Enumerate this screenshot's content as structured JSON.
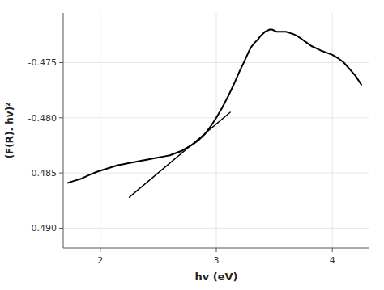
{
  "chart_data": {
    "type": "line",
    "title": "",
    "xlabel": "hv (eV)",
    "ylabel": "(F(R). hv)²",
    "xlim": [
      1.68,
      4.32
    ],
    "ylim": [
      -0.4918,
      -0.4705
    ],
    "xticks": [
      2,
      3,
      4
    ],
    "yticks": [
      {
        "value": -0.49,
        "label": "-0.490"
      },
      -0.485,
      {
        "value": -0.48,
        "label": "-0.480"
      },
      -0.475
    ],
    "series": [
      {
        "color": "#000000",
        "x": [
          1.72,
          1.78,
          1.84,
          1.9,
          1.97,
          2.03,
          2.09,
          2.15,
          2.2,
          2.25,
          2.3,
          2.35,
          2.4,
          2.45,
          2.5,
          2.55,
          2.6,
          2.65,
          2.7,
          2.75,
          2.8,
          2.85,
          2.9,
          2.95,
          3.0,
          3.05,
          3.1,
          3.15,
          3.2,
          3.25,
          3.28,
          3.3,
          3.33,
          3.36,
          3.38,
          3.4,
          3.42,
          3.44,
          3.46,
          3.48,
          3.5,
          3.52,
          3.54,
          3.57,
          3.6,
          3.63,
          3.66,
          3.7,
          3.74,
          3.78,
          3.82,
          3.86,
          3.9,
          3.95,
          4.0,
          4.05,
          4.1,
          4.15,
          4.2,
          4.25
        ],
        "values": [
          -0.4859,
          -0.4857,
          -0.4855,
          -0.4852,
          -0.4849,
          -0.4847,
          -0.4845,
          -0.4843,
          -0.4842,
          -0.4841,
          -0.484,
          -0.4839,
          -0.4838,
          -0.4837,
          -0.4836,
          -0.4835,
          -0.4834,
          -0.4832,
          -0.483,
          -0.4827,
          -0.4824,
          -0.482,
          -0.4815,
          -0.4808,
          -0.48,
          -0.4791,
          -0.4781,
          -0.477,
          -0.4758,
          -0.4747,
          -0.474,
          -0.4736,
          -0.4732,
          -0.4729,
          -0.4726,
          -0.4724,
          -0.4722,
          -0.4721,
          -0.472,
          -0.472,
          -0.4721,
          -0.4722,
          -0.4722,
          -0.4722,
          -0.4722,
          -0.4723,
          -0.4724,
          -0.4726,
          -0.4729,
          -0.4732,
          -0.4735,
          -0.4737,
          -0.4739,
          -0.4741,
          -0.4743,
          -0.4746,
          -0.475,
          -0.4756,
          -0.4762,
          -0.477
        ]
      },
      {
        "color": "#000000",
        "x": [
          2.25,
          3.12
        ],
        "values": [
          -0.4872,
          -0.4795
        ]
      }
    ]
  }
}
